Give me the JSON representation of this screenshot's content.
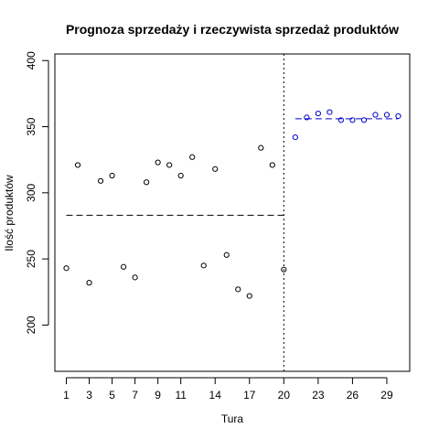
{
  "chart_data": {
    "type": "scatter",
    "title": "Prognoza sprzedaży i rzeczywista sprzedaż produktów",
    "xlabel": "Tura",
    "ylabel": "Ilość produktów",
    "xlim": [
      0,
      31
    ],
    "ylim": [
      165,
      405
    ],
    "x_ticks": [
      1,
      3,
      5,
      7,
      9,
      11,
      14,
      17,
      20,
      23,
      26,
      29
    ],
    "y_ticks": [
      200,
      250,
      300,
      350,
      400
    ],
    "series": [
      {
        "color": "#000000",
        "marker": "open-circle",
        "points": [
          [
            1,
            243
          ],
          [
            2,
            321
          ],
          [
            3,
            232
          ],
          [
            4,
            309
          ],
          [
            5,
            313
          ],
          [
            6,
            244
          ],
          [
            7,
            236
          ],
          [
            8,
            308
          ],
          [
            9,
            323
          ],
          [
            10,
            321
          ],
          [
            11,
            313
          ],
          [
            12,
            327
          ],
          [
            13,
            245
          ],
          [
            14,
            318
          ],
          [
            15,
            253
          ],
          [
            16,
            227
          ],
          [
            17,
            222
          ],
          [
            18,
            334
          ],
          [
            19,
            321
          ],
          [
            20,
            242
          ]
        ]
      },
      {
        "color": "#0000cc",
        "marker": "open-circle",
        "points": [
          [
            21,
            342
          ],
          [
            22,
            357
          ],
          [
            23,
            360
          ],
          [
            24,
            361
          ],
          [
            25,
            355
          ],
          [
            26,
            355
          ],
          [
            27,
            355
          ],
          [
            28,
            359
          ],
          [
            29,
            359
          ],
          [
            30,
            358
          ]
        ]
      }
    ],
    "reference_lines": [
      {
        "orientation": "horizontal",
        "y": 283,
        "x_from": 1,
        "x_to": 20,
        "style": "dashed",
        "color": "#000000"
      },
      {
        "orientation": "horizontal",
        "y": 356,
        "x_from": 21,
        "x_to": 30,
        "style": "dashed",
        "color": "#0000cc"
      },
      {
        "orientation": "vertical",
        "x": 20,
        "style": "dotted",
        "color": "#000000"
      }
    ]
  }
}
